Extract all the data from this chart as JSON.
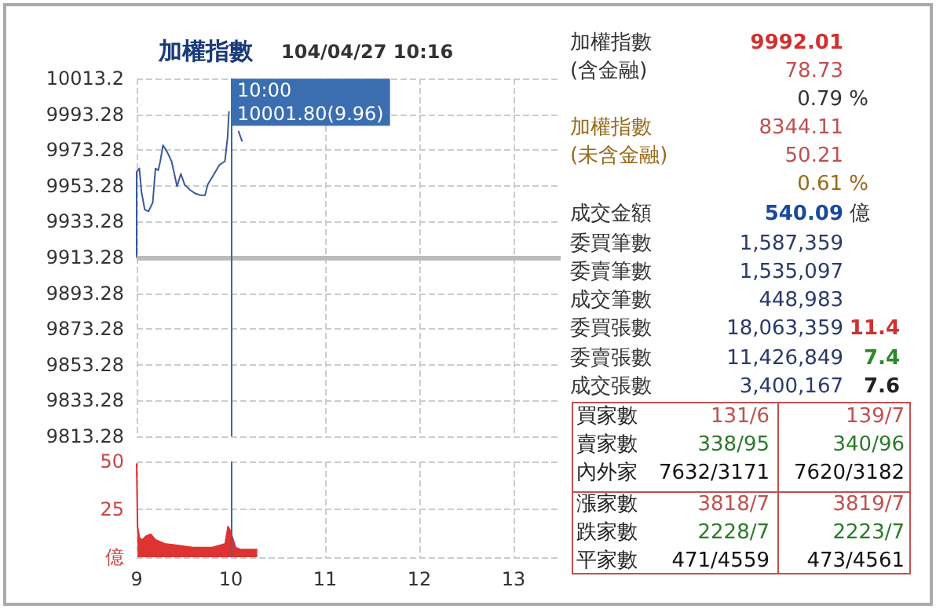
{
  "chart_data": [
    {
      "type": "line",
      "title": "加權指數",
      "subtitle": "104/04/27 10:16",
      "xlim": [
        9,
        13.5
      ],
      "xticks": [
        9,
        10,
        11,
        12,
        13
      ],
      "ylim": [
        9813.28,
        10013.28
      ],
      "yticks": [
        10013.2,
        9993.28,
        9973.28,
        9953.28,
        9933.28,
        9913.28,
        9893.28,
        9873.28,
        9853.28,
        9833.28,
        9813.28
      ],
      "tick_labels": "y",
      "grid": true,
      "marker": "none",
      "line_style": "solid",
      "series": [
        {
          "color": "#3a5a9a",
          "x": [
            9,
            9.0,
            9.029,
            9.051,
            9.086,
            9.126,
            9.171,
            9.2,
            9.229,
            9.251,
            9.28,
            9.326,
            9.371,
            9.429,
            9.469,
            9.509,
            9.566,
            9.623,
            9.68,
            9.726,
            9.754,
            9.823,
            9.88,
            9.937,
            9.966,
            9.98,
            10.05,
            10.08,
            10.12
          ],
          "values": [
            9913,
            9961,
            9963,
            9950,
            9940,
            9939,
            9944,
            9963,
            9962,
            9967,
            9976,
            9972,
            9967,
            9953,
            9960,
            9954,
            9951,
            9949,
            9948,
            9948,
            9954,
            9960,
            9965,
            9967,
            9981,
            9995,
            null,
            9984,
            9978
          ]
        }
      ],
      "ref_lines": [
        {
          "axis": "y",
          "value": 9913.28,
          "color": "#bbbbbb"
        },
        {
          "axis": "x",
          "value": 10,
          "color": "#3a6a9a"
        }
      ],
      "annotations": [
        {
          "text": "10:00\n10001.80(9.96)",
          "x": 10,
          "y": 10001.8
        }
      ]
    },
    {
      "type": "area",
      "xlim": [
        9,
        13.5
      ],
      "xticks": [
        9,
        10,
        11,
        12,
        13
      ],
      "ylim": [
        0,
        50
      ],
      "yticks": [
        {
          "value": 0,
          "label": "億"
        },
        25,
        50
      ],
      "grid": true,
      "marker": "none",
      "series": [
        {
          "color": "#dd3333",
          "x": [
            9,
            9.01,
            9.03,
            9.06,
            9.1,
            9.15,
            9.2,
            9.3,
            9.45,
            9.6,
            9.8,
            9.94,
            9.97,
            10.0,
            10.05,
            10.1,
            10.28
          ],
          "values": [
            49,
            16,
            10,
            9,
            11,
            12,
            9,
            7,
            6,
            5,
            5,
            7,
            16,
            13,
            5,
            4,
            4
          ]
        }
      ],
      "ref_lines": [
        {
          "axis": "x",
          "value": 10,
          "color": "#3a6a9a"
        }
      ]
    },
    {
      "type": "other",
      "annotations": [
        "加權指數",
        "9992.01",
        "(含金融)",
        "78.73",
        "0.79 %",
        "加權指數",
        "8344.11",
        "(未含金融)",
        "50.21",
        "0.61 %",
        "成交金額",
        "540.09",
        "億",
        "委買筆數",
        "1,587,359",
        "委賣筆數",
        "1,535,097",
        "成交筆數",
        "448,983",
        "委買張數",
        "18,063,359",
        "11.4",
        "委賣張數",
        "11,426,849",
        "7.4",
        "成交張數",
        "3,400,167",
        "7.6",
        "買家數",
        "131/6",
        "139/7",
        "賣家數",
        "338/95",
        "340/96",
        "內外家",
        "7632/3171",
        "7620/3182",
        "漲家數",
        "3818/7",
        "3819/7",
        "跌家數",
        "2228/7",
        "2223/7",
        "平家數",
        "471/4559",
        "473/4561"
      ]
    }
  ]
}
